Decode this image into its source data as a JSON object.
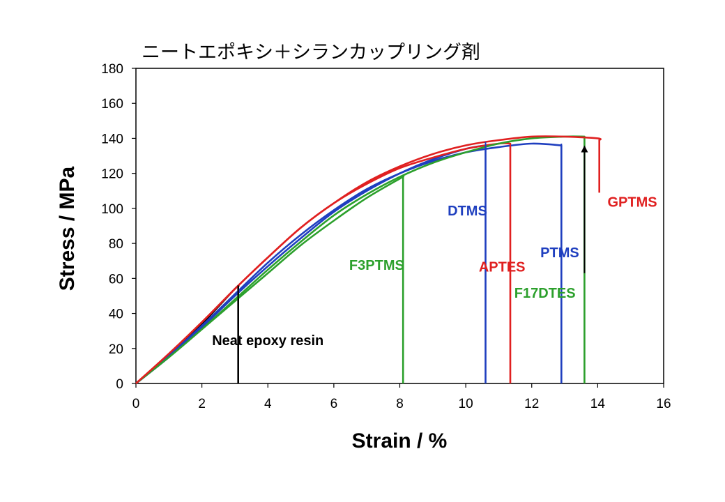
{
  "chart_data": {
    "type": "line",
    "title": "ニートエポキシ＋シランカップリング剤",
    "xlabel": "Strain / %",
    "ylabel": "Stress / MPa",
    "xlim": [
      0,
      16
    ],
    "ylim": [
      0,
      180
    ],
    "xticks": [
      0,
      2,
      4,
      6,
      8,
      10,
      12,
      14,
      16
    ],
    "yticks": [
      0,
      20,
      40,
      60,
      80,
      100,
      120,
      140,
      160,
      180
    ],
    "grid": false,
    "legend": "none",
    "series": [
      {
        "name": "Neat epoxy resin",
        "color": "#000000",
        "points": [
          [
            0,
            0
          ],
          [
            1,
            16
          ],
          [
            2,
            34
          ],
          [
            3,
            54
          ],
          [
            3.1,
            55
          ]
        ],
        "drop_to": 0
      },
      {
        "name": "F3PTMS",
        "color": "#2ca02c",
        "points": [
          [
            0,
            0
          ],
          [
            1,
            15
          ],
          [
            2,
            31
          ],
          [
            3,
            47
          ],
          [
            4,
            63
          ],
          [
            5,
            79
          ],
          [
            6,
            93
          ],
          [
            7,
            106
          ],
          [
            8,
            117
          ],
          [
            8.1,
            118
          ]
        ],
        "drop_to": 0
      },
      {
        "name": "DTMS",
        "color": "#1f3fbf",
        "points": [
          [
            0,
            0
          ],
          [
            1,
            15
          ],
          [
            2,
            32
          ],
          [
            3,
            50
          ],
          [
            4,
            67
          ],
          [
            5,
            83
          ],
          [
            6,
            98
          ],
          [
            7,
            110
          ],
          [
            8,
            120
          ],
          [
            9,
            128
          ],
          [
            10,
            134
          ],
          [
            10.6,
            136
          ]
        ],
        "drop_to": 0
      },
      {
        "name": "APTES",
        "color": "#e02020",
        "points": [
          [
            0,
            0
          ],
          [
            1,
            17
          ],
          [
            2,
            35
          ],
          [
            3,
            54
          ],
          [
            4,
            72
          ],
          [
            5,
            89
          ],
          [
            6,
            103
          ],
          [
            7,
            114
          ],
          [
            8,
            123
          ],
          [
            9,
            129
          ],
          [
            10,
            134
          ],
          [
            11,
            137
          ],
          [
            11.35,
            137
          ]
        ],
        "drop_to": 0
      },
      {
        "name": "PTMS",
        "color": "#1f3fbf",
        "points": [
          [
            0,
            0
          ],
          [
            1,
            16
          ],
          [
            2,
            33
          ],
          [
            3,
            51
          ],
          [
            4,
            69
          ],
          [
            5,
            85
          ],
          [
            6,
            99
          ],
          [
            7,
            111
          ],
          [
            8,
            120
          ],
          [
            9,
            127
          ],
          [
            10,
            132
          ],
          [
            11,
            135
          ],
          [
            12,
            137
          ],
          [
            12.9,
            136
          ]
        ],
        "drop_to": 0
      },
      {
        "name": "F17DTES",
        "color": "#2ca02c",
        "points": [
          [
            0,
            0
          ],
          [
            1,
            15
          ],
          [
            2,
            31
          ],
          [
            3,
            48
          ],
          [
            4,
            65
          ],
          [
            5,
            81
          ],
          [
            6,
            96
          ],
          [
            7,
            108
          ],
          [
            8,
            118
          ],
          [
            9,
            126
          ],
          [
            10,
            132
          ],
          [
            11,
            137
          ],
          [
            12,
            140
          ],
          [
            13,
            141
          ],
          [
            13.6,
            141
          ]
        ],
        "drop_to": 0
      },
      {
        "name": "GPTMS",
        "color": "#e02020",
        "points": [
          [
            0,
            0
          ],
          [
            1,
            17
          ],
          [
            2,
            35
          ],
          [
            3,
            54
          ],
          [
            4,
            72
          ],
          [
            5,
            89
          ],
          [
            6,
            103
          ],
          [
            7,
            115
          ],
          [
            8,
            124
          ],
          [
            9,
            131
          ],
          [
            10,
            136
          ],
          [
            11,
            139
          ],
          [
            12,
            141
          ],
          [
            13,
            141
          ],
          [
            14,
            140
          ],
          [
            14.05,
            139
          ]
        ],
        "drop_to": 109
      }
    ],
    "annotations": [
      {
        "text": "Neat epoxy resin",
        "color": "#000000",
        "text_at": [
          4.0,
          22
        ],
        "pointer": [
          [
            3.1,
            56
          ],
          [
            3.1,
            32
          ]
        ],
        "arrow": false
      },
      {
        "text": "F3PTMS",
        "color": "#2ca02c",
        "text_at": [
          7.3,
          65
        ],
        "pointer": [
          [
            8.1,
            119
          ],
          [
            8.1,
            79
          ]
        ],
        "arrow": false
      },
      {
        "text": "DTMS",
        "color": "#1f3fbf",
        "text_at": [
          10.05,
          96
        ],
        "pointer": [
          [
            10.6,
            138
          ],
          [
            10.6,
            107
          ]
        ],
        "arrow": false
      },
      {
        "text": "APTES",
        "color": "#e02020",
        "text_at": [
          11.1,
          64
        ],
        "pointer": [
          [
            11.35,
            137
          ],
          [
            11.35,
            75
          ]
        ],
        "arrow": false
      },
      {
        "text": "PTMS",
        "color": "#1f3fbf",
        "text_at": [
          12.85,
          72
        ],
        "pointer": [
          [
            12.9,
            137
          ],
          [
            12.9,
            81
          ]
        ],
        "arrow": false
      },
      {
        "text": "F17DTES",
        "color": "#2ca02c",
        "text_at": [
          12.4,
          49
        ],
        "pointer": [
          [
            13.6,
            63
          ],
          [
            13.6,
            134
          ]
        ],
        "arrow": true
      },
      {
        "text": "GPTMS",
        "color": "#e02020",
        "text_at": [
          15.05,
          101
        ],
        "pointer": [
          [
            14.05,
            139
          ],
          [
            14.05,
            109
          ]
        ],
        "arrow": false
      }
    ]
  }
}
